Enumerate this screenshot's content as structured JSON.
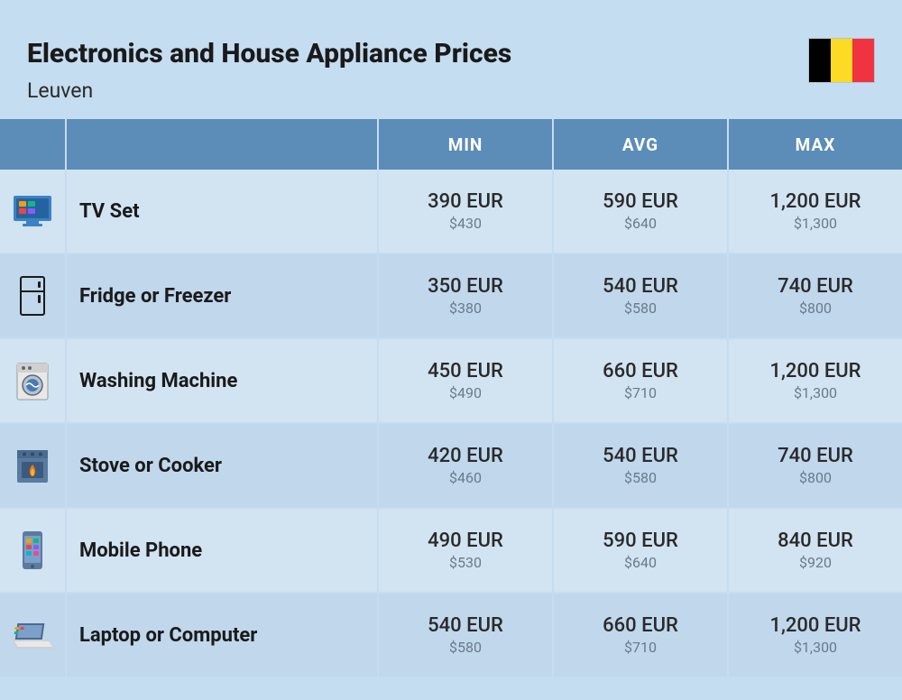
{
  "header": {
    "title": "Electronics and House Appliance Prices",
    "subtitle": "Leuven",
    "flag_colors": [
      "#000000",
      "#FDDA24",
      "#EF3340"
    ]
  },
  "table": {
    "columns": [
      "MIN",
      "AVG",
      "MAX"
    ],
    "rows": [
      {
        "icon": "tv",
        "name": "TV Set",
        "prices": [
          {
            "eur": "390 EUR",
            "usd": "$430"
          },
          {
            "eur": "590 EUR",
            "usd": "$640"
          },
          {
            "eur": "1,200 EUR",
            "usd": "$1,300"
          }
        ]
      },
      {
        "icon": "fridge",
        "name": "Fridge or Freezer",
        "prices": [
          {
            "eur": "350 EUR",
            "usd": "$380"
          },
          {
            "eur": "540 EUR",
            "usd": "$580"
          },
          {
            "eur": "740 EUR",
            "usd": "$800"
          }
        ]
      },
      {
        "icon": "washing-machine",
        "name": "Washing Machine",
        "prices": [
          {
            "eur": "450 EUR",
            "usd": "$490"
          },
          {
            "eur": "660 EUR",
            "usd": "$710"
          },
          {
            "eur": "1,200 EUR",
            "usd": "$1,300"
          }
        ]
      },
      {
        "icon": "stove",
        "name": "Stove or Cooker",
        "prices": [
          {
            "eur": "420 EUR",
            "usd": "$460"
          },
          {
            "eur": "540 EUR",
            "usd": "$580"
          },
          {
            "eur": "740 EUR",
            "usd": "$800"
          }
        ]
      },
      {
        "icon": "phone",
        "name": "Mobile Phone",
        "prices": [
          {
            "eur": "490 EUR",
            "usd": "$530"
          },
          {
            "eur": "590 EUR",
            "usd": "$640"
          },
          {
            "eur": "840 EUR",
            "usd": "$920"
          }
        ]
      },
      {
        "icon": "laptop",
        "name": "Laptop or Computer",
        "prices": [
          {
            "eur": "540 EUR",
            "usd": "$580"
          },
          {
            "eur": "660 EUR",
            "usd": "$710"
          },
          {
            "eur": "1,200 EUR",
            "usd": "$1,300"
          }
        ]
      }
    ]
  },
  "styling": {
    "page_bg": "#c5ddf0",
    "header_bg": "#5c8cb8",
    "header_text": "#ffffff",
    "row_odd_bg": "#d2e3f2",
    "row_even_bg": "#c0d7ec",
    "title_color": "#1a1a1a",
    "price_main_color": "#2a2a2a",
    "price_sub_color": "#6a7a8a",
    "title_fontsize": 30,
    "subtitle_fontsize": 23,
    "header_fontsize": 19,
    "name_fontsize": 22,
    "price_main_fontsize": 22,
    "price_sub_fontsize": 16,
    "column_widths": {
      "icon": 74,
      "name": 346,
      "price": "flex"
    }
  }
}
